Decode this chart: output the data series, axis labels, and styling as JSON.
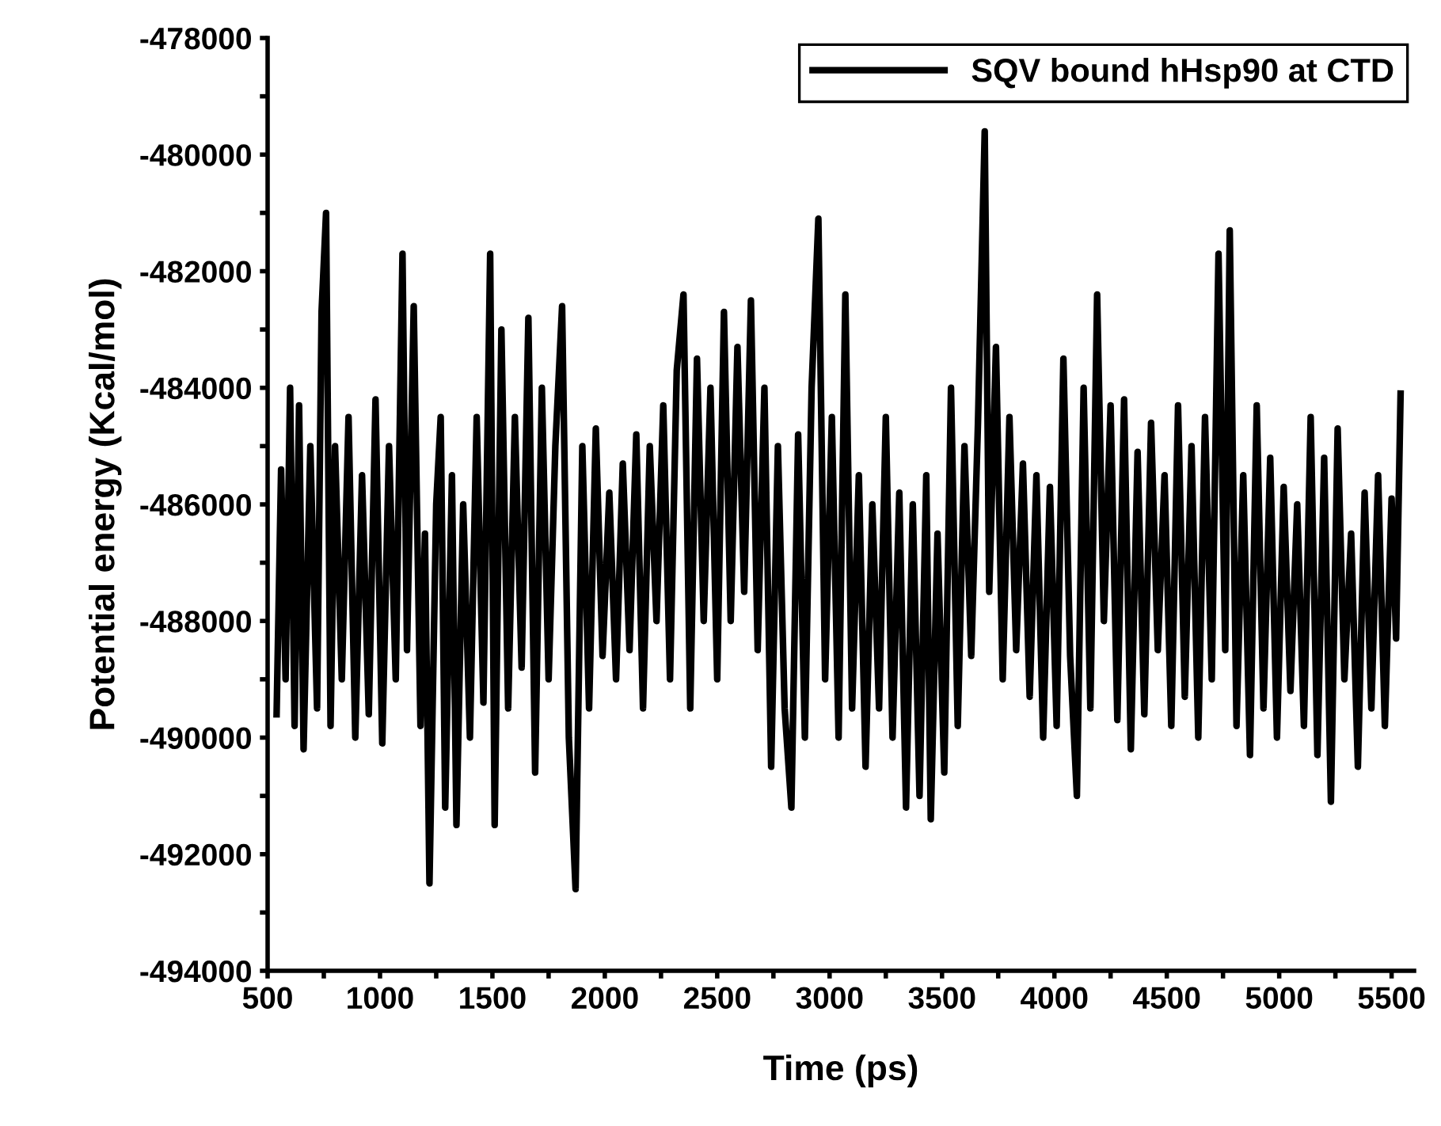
{
  "chart_data": {
    "type": "line",
    "xlabel": "Time (ps)",
    "ylabel": "Potential energy (Kcal/mol)",
    "xlim": [
      500,
      5600
    ],
    "ylim": [
      -494000,
      -478000
    ],
    "xticks": [
      500,
      {
        "value": 750,
        "label": null
      },
      1000,
      {
        "value": 1250,
        "label": null
      },
      1500,
      {
        "value": 1750,
        "label": null
      },
      2000,
      {
        "value": 2250,
        "label": null
      },
      2500,
      {
        "value": 2750,
        "label": null
      },
      3000,
      {
        "value": 3250,
        "label": null
      },
      3500,
      {
        "value": 3750,
        "label": null
      },
      4000,
      {
        "value": 4250,
        "label": null
      },
      4500,
      {
        "value": 4750,
        "label": null
      },
      5000,
      {
        "value": 5250,
        "label": null
      },
      5500
    ],
    "yticks": [
      -494000,
      {
        "value": -493000,
        "label": null
      },
      -492000,
      {
        "value": -491000,
        "label": null
      },
      -490000,
      {
        "value": -489000,
        "label": null
      },
      -488000,
      {
        "value": -487000,
        "label": null
      },
      -486000,
      {
        "value": -485000,
        "label": null
      },
      -484000,
      {
        "value": -483000,
        "label": null
      },
      -482000,
      {
        "value": -481000,
        "label": null
      },
      -480000,
      {
        "value": -479000,
        "label": null
      },
      -478000
    ],
    "grid": false,
    "legend": "top right",
    "marker": "none",
    "line_style": "solid",
    "x": [
      540,
      560,
      580,
      600,
      620,
      640,
      660,
      690,
      720,
      740,
      760,
      780,
      800,
      830,
      860,
      890,
      920,
      950,
      980,
      1010,
      1040,
      1070,
      1100,
      1120,
      1150,
      1180,
      1200,
      1220,
      1250,
      1270,
      1290,
      1320,
      1340,
      1370,
      1400,
      1430,
      1460,
      1490,
      1510,
      1540,
      1570,
      1600,
      1630,
      1660,
      1690,
      1720,
      1750,
      1780,
      1810,
      1840,
      1870,
      1900,
      1930,
      1960,
      1990,
      2020,
      2050,
      2080,
      2110,
      2140,
      2170,
      2200,
      2230,
      2260,
      2290,
      2320,
      2350,
      2380,
      2410,
      2440,
      2470,
      2500,
      2530,
      2560,
      2590,
      2620,
      2650,
      2680,
      2710,
      2740,
      2770,
      2800,
      2830,
      2860,
      2890,
      2920,
      2950,
      2980,
      3010,
      3040,
      3070,
      3100,
      3130,
      3160,
      3190,
      3220,
      3250,
      3280,
      3310,
      3340,
      3370,
      3400,
      3430,
      3450,
      3480,
      3510,
      3540,
      3570,
      3600,
      3630,
      3660,
      3690,
      3710,
      3740,
      3770,
      3800,
      3830,
      3860,
      3890,
      3920,
      3950,
      3980,
      4010,
      4040,
      4070,
      4100,
      4130,
      4160,
      4190,
      4220,
      4250,
      4280,
      4310,
      4340,
      4370,
      4400,
      4430,
      4460,
      4490,
      4520,
      4550,
      4580,
      4610,
      4640,
      4670,
      4700,
      4730,
      4760,
      4780,
      4810,
      4840,
      4870,
      4900,
      4930,
      4960,
      4990,
      5020,
      5050,
      5080,
      5110,
      5140,
      5170,
      5200,
      5230,
      5260,
      5290,
      5320,
      5350,
      5380,
      5410,
      5440,
      5470,
      5500,
      5520,
      5540
    ],
    "series": [
      {
        "name": "SQV bound hHsp90 at CTD",
        "color": "#000000",
        "values": [
          -489600,
          -485400,
          -489000,
          -484000,
          -489800,
          -484300,
          -490200,
          -485000,
          -489500,
          -482700,
          -481000,
          -489800,
          -485000,
          -489000,
          -484500,
          -490000,
          -485500,
          -489600,
          -484200,
          -490100,
          -485000,
          -489000,
          -481700,
          -488500,
          -482600,
          -489800,
          -486500,
          -492500,
          -486000,
          -484500,
          -491200,
          -485500,
          -491500,
          -486000,
          -490000,
          -484500,
          -489400,
          -481700,
          -491500,
          -483000,
          -489500,
          -484500,
          -488800,
          -482800,
          -490600,
          -484000,
          -489000,
          -485000,
          -482600,
          -490000,
          -492600,
          -485000,
          -489500,
          -484700,
          -488600,
          -485800,
          -489000,
          -485300,
          -488500,
          -484800,
          -489500,
          -485000,
          -488000,
          -484300,
          -489000,
          -483700,
          -482400,
          -489500,
          -483500,
          -488000,
          -484000,
          -489000,
          -482700,
          -488000,
          -483300,
          -487500,
          -482500,
          -488500,
          -484000,
          -490500,
          -485000,
          -489500,
          -491200,
          -484800,
          -490000,
          -484000,
          -481100,
          -489000,
          -484500,
          -490000,
          -482400,
          -489500,
          -485500,
          -490500,
          -486000,
          -489500,
          -484500,
          -490000,
          -485800,
          -491200,
          -486000,
          -491000,
          -485500,
          -491400,
          -486500,
          -490600,
          -484000,
          -489800,
          -485000,
          -488600,
          -484600,
          -479600,
          -487500,
          -483300,
          -489000,
          -484500,
          -488500,
          -485300,
          -489300,
          -485500,
          -490000,
          -485700,
          -489800,
          -483500,
          -488600,
          -491000,
          -484000,
          -489500,
          -482400,
          -488000,
          -484300,
          -489700,
          -484200,
          -490200,
          -485100,
          -489600,
          -484600,
          -488500,
          -485500,
          -489800,
          -484300,
          -489300,
          -485000,
          -490000,
          -484500,
          -489000,
          -481700,
          -488500,
          -481300,
          -489800,
          -485500,
          -490300,
          -484300,
          -489500,
          -485200,
          -490000,
          -485700,
          -489200,
          -486000,
          -489800,
          -484500,
          -490300,
          -485200,
          -491100,
          -484700,
          -489000,
          -486500,
          -490500,
          -485800,
          -489500,
          -485500,
          -489800,
          -485900,
          -488300,
          -484100
        ]
      }
    ]
  }
}
